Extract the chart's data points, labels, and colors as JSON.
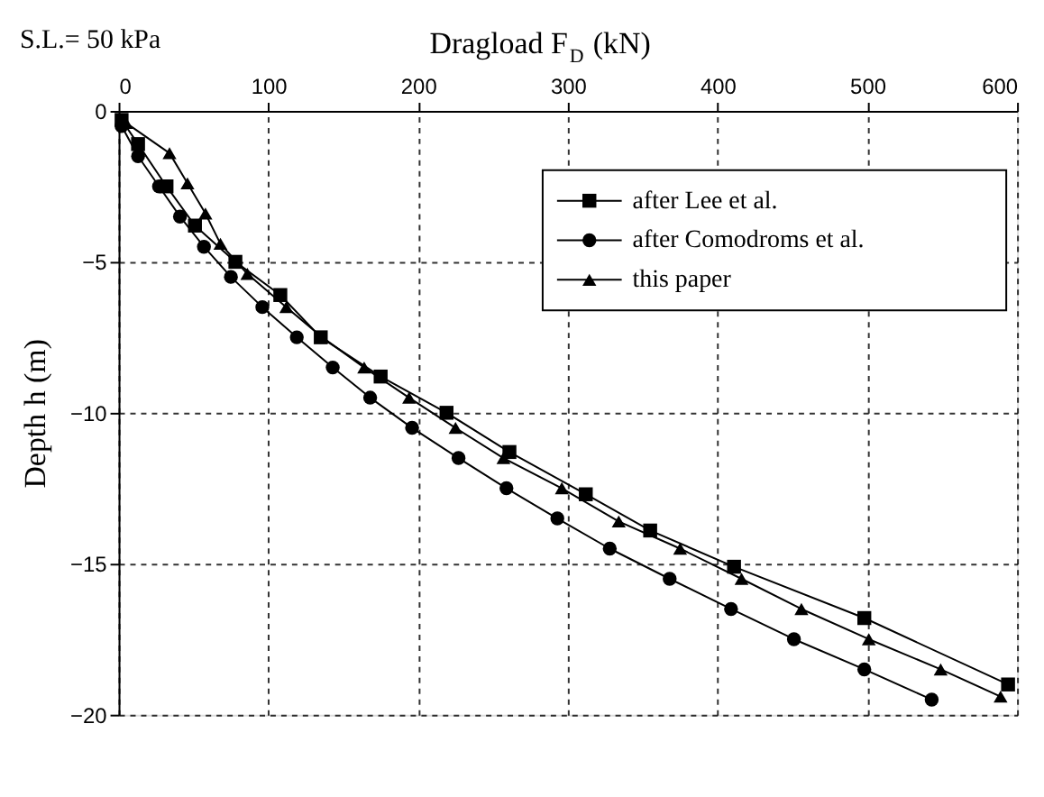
{
  "chart_data": {
    "type": "line",
    "xlabel": "Dragload F$_{D}$ (kN)",
    "ylabel": "Depth h (m)",
    "annotations": [
      "S.L.= 50 kPa"
    ],
    "xlim": [
      0,
      600
    ],
    "xticks": [
      0,
      100,
      200,
      300,
      400,
      500,
      600
    ],
    "ylim": [
      -20,
      0
    ],
    "yticks": [
      0,
      -5,
      -10,
      -15,
      -20
    ],
    "grid": true,
    "legend": "top right",
    "line_style": "solid",
    "series": [
      {
        "name": "after Lee et al.",
        "color": "#000000",
        "marker": "square",
        "x": [
          2,
          13,
          32,
          51,
          78,
          108,
          135,
          175,
          219,
          261,
          312,
          355,
          411,
          498,
          594
        ],
        "values": [
          -0.3,
          -1.1,
          -2.5,
          -3.8,
          -5.0,
          -6.1,
          -7.5,
          -8.8,
          -10.0,
          -11.3,
          -12.7,
          -13.9,
          -15.1,
          -16.8,
          -19.0
        ]
      },
      {
        "name": "after Comodroms et al.",
        "color": "#000000",
        "marker": "circle",
        "x": [
          2,
          13,
          27,
          41,
          57,
          75,
          96,
          119,
          143,
          168,
          196,
          227,
          259,
          293,
          328,
          368,
          409,
          451,
          498,
          543
        ],
        "values": [
          -0.5,
          -1.5,
          -2.5,
          -3.5,
          -4.5,
          -5.5,
          -6.5,
          -7.5,
          -8.5,
          -9.5,
          -10.5,
          -11.5,
          -12.5,
          -13.5,
          -14.5,
          -15.5,
          -16.5,
          -17.5,
          -18.5,
          -19.5
        ]
      },
      {
        "name": "this paper",
        "color": "#000000",
        "marker": "triangle",
        "x": [
          5,
          34,
          46,
          58,
          68,
          86,
          112,
          136,
          164,
          194,
          225,
          257,
          296,
          334,
          375,
          416,
          456,
          501,
          549,
          589
        ],
        "values": [
          -0.4,
          -1.4,
          -2.4,
          -3.4,
          -4.4,
          -5.4,
          -6.5,
          -7.5,
          -8.5,
          -9.5,
          -10.5,
          -11.5,
          -12.5,
          -13.6,
          -14.5,
          -15.5,
          -16.5,
          -17.5,
          -18.5,
          -19.4
        ]
      }
    ]
  }
}
